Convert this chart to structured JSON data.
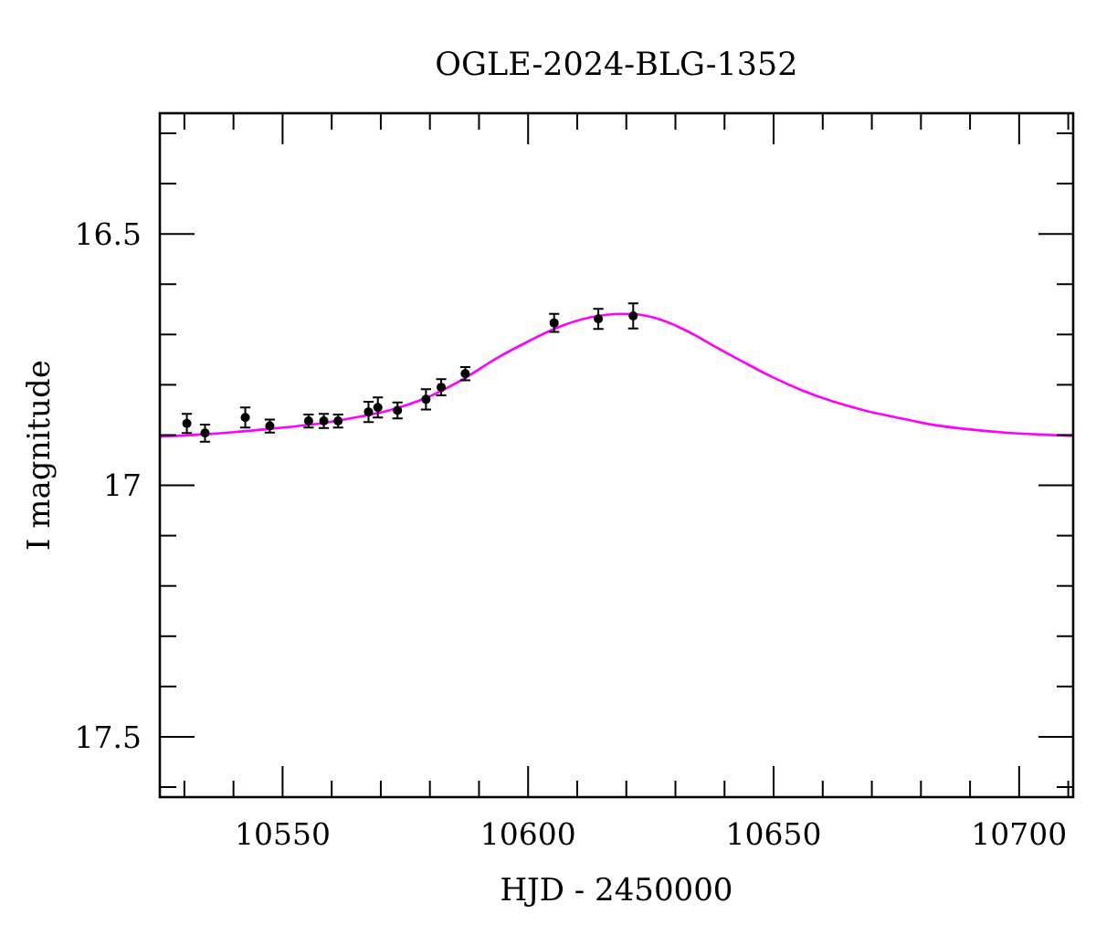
{
  "chart_data": {
    "type": "scatter",
    "title": "OGLE-2024-BLG-1352",
    "xlabel": "HJD - 2450000",
    "ylabel": "I magnitude",
    "xlim": [
      10525,
      10711
    ],
    "ylim": [
      17.62,
      16.26
    ],
    "xticks": [
      {
        "value": 10530,
        "label": null
      },
      {
        "value": 10540,
        "label": null
      },
      10550,
      {
        "value": 10560,
        "label": null
      },
      {
        "value": 10570,
        "label": null
      },
      {
        "value": 10580,
        "label": null
      },
      {
        "value": 10590,
        "label": null
      },
      10600,
      {
        "value": 10610,
        "label": null
      },
      {
        "value": 10620,
        "label": null
      },
      {
        "value": 10630,
        "label": null
      },
      {
        "value": 10640,
        "label": null
      },
      10650,
      {
        "value": 10660,
        "label": null
      },
      {
        "value": 10670,
        "label": null
      },
      {
        "value": 10680,
        "label": null
      },
      {
        "value": 10690,
        "label": null
      },
      10700,
      {
        "value": 10710,
        "label": null
      }
    ],
    "yticks": [
      {
        "value": 16.3,
        "label": null
      },
      {
        "value": 16.4,
        "label": null
      },
      16.5,
      {
        "value": 16.6,
        "label": null
      },
      {
        "value": 16.7,
        "label": null
      },
      {
        "value": 16.8,
        "label": null
      },
      {
        "value": 16.9,
        "label": null
      },
      17,
      {
        "value": 17.1,
        "label": null
      },
      {
        "value": 17.2,
        "label": null
      },
      {
        "value": 17.3,
        "label": null
      },
      {
        "value": 17.4,
        "label": null
      },
      17.5,
      {
        "value": 17.6,
        "label": null
      }
    ],
    "series": [
      {
        "type": "line",
        "color": "#ff00ff",
        "marker": "none",
        "line_style": "solid",
        "x": [
          10525,
          10535,
          10547,
          10559,
          10566,
          10572,
          10579,
          10586,
          10594,
          10600,
          10605.3,
          10612.7,
          10619,
          10622,
          10625,
          10628,
          10631.3,
          10634.5,
          10637.5,
          10643.7,
          10650,
          10656,
          10662,
          10668.5,
          10675,
          10682,
          10690,
          10697,
          10704,
          10711
        ],
        "values": [
          16.903,
          16.898,
          16.888,
          16.875,
          16.863,
          16.85,
          16.827,
          16.793,
          16.745,
          16.714,
          16.689,
          16.666,
          16.659,
          16.66,
          16.665,
          16.674,
          16.688,
          16.704,
          16.721,
          16.754,
          16.786,
          16.812,
          16.833,
          16.851,
          16.865,
          16.879,
          16.889,
          16.895,
          16.899,
          16.902
        ]
      },
      {
        "color": "#000000",
        "marker": "circle",
        "x": [
          10530.5,
          10534.2,
          10542.4,
          10547.4,
          10555.3,
          10558.4,
          10561.3,
          10567.5,
          10569.4,
          10573.4,
          10579.2,
          10582.3,
          10587.2,
          10605.3,
          10614.3,
          10621.4
        ],
        "values": [
          16.877,
          16.896,
          16.865,
          16.882,
          16.872,
          16.872,
          16.872,
          16.854,
          16.845,
          16.851,
          16.829,
          16.805,
          16.778,
          16.677,
          16.669,
          16.663
        ],
        "errors": [
          0.019,
          0.017,
          0.02,
          0.013,
          0.013,
          0.014,
          0.013,
          0.02,
          0.02,
          0.016,
          0.02,
          0.016,
          0.013,
          0.018,
          0.02,
          0.025
        ]
      }
    ]
  }
}
